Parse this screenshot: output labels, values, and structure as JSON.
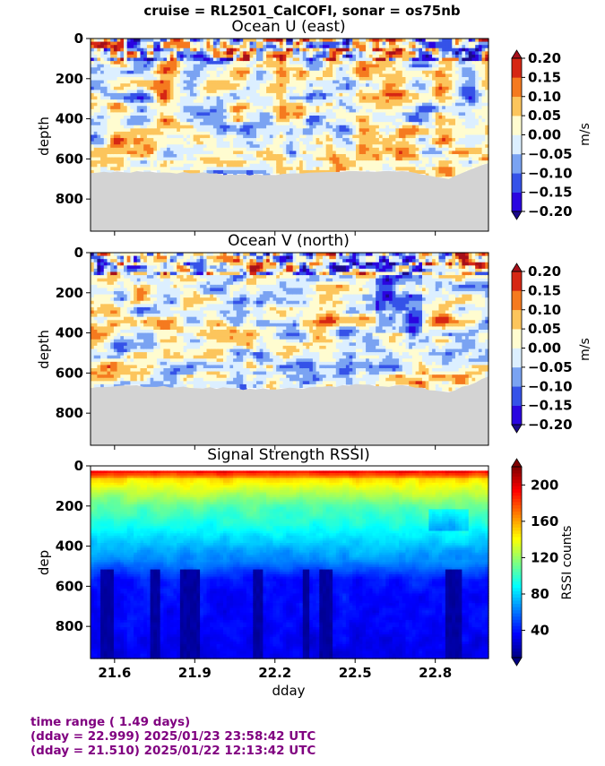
{
  "suptitle": "cruise = RL2501_CalCOFI,  sonar = os75nb",
  "footer": {
    "line1": "time range ( 1.49 days)",
    "line2": "(dday = 22.999) 2025/01/23 23:58:42 UTC",
    "line3": "(dday = 21.510) 2025/01/22 12:13:42 UTC"
  },
  "colors": {
    "no_data": "#d3d3d3",
    "diverging_levels": [
      "#2a05e0",
      "#3552e8",
      "#7aa3f2",
      "#dcefff",
      "#fffcd0",
      "#fcc55c",
      "#f57a1f",
      "#d62714"
    ],
    "diverging_over": "#a6101a",
    "diverging_under": "#1b0a8c",
    "title_purple": "#800080"
  },
  "chart_data": [
    {
      "type": "heatmap",
      "title": "Ocean U (east)",
      "xlabel": "",
      "ylabel": "depth",
      "x_range": [
        21.51,
        22.999
      ],
      "ylim": [
        960,
        0
      ],
      "yticks": [
        "0",
        "200",
        "400",
        "600",
        "800"
      ],
      "xticks": [
        "21.6",
        "21.9",
        "22.2",
        "22.5",
        "22.8"
      ],
      "colorbar": {
        "label": "m/s",
        "range": [
          -0.2,
          0.2
        ],
        "ticks": [
          "0.20",
          "0.15",
          "0.10",
          "0.05",
          "0.00",
          "−0.05",
          "−0.10",
          "−0.15",
          "−0.20"
        ],
        "extend": "both"
      },
      "bottom_depth_profile": {
        "dday": [
          21.51,
          21.7,
          21.9,
          22.1,
          22.3,
          22.5,
          22.7,
          22.85,
          22.999
        ],
        "depth": [
          670,
          665,
          670,
          680,
          675,
          660,
          665,
          700,
          620
        ]
      }
    },
    {
      "type": "heatmap",
      "title": "Ocean V (north)",
      "xlabel": "",
      "ylabel": "depth",
      "x_range": [
        21.51,
        22.999
      ],
      "ylim": [
        960,
        0
      ],
      "yticks": [
        "0",
        "200",
        "400",
        "600",
        "800"
      ],
      "xticks": [
        "21.6",
        "21.9",
        "22.2",
        "22.5",
        "22.8"
      ],
      "colorbar": {
        "label": "m/s",
        "range": [
          -0.2,
          0.2
        ],
        "ticks": [
          "0.20",
          "0.15",
          "0.10",
          "0.05",
          "0.00",
          "−0.05",
          "−0.10",
          "−0.15",
          "−0.20"
        ],
        "extend": "both"
      },
      "bottom_depth_profile": {
        "dday": [
          21.51,
          21.7,
          21.9,
          22.1,
          22.3,
          22.5,
          22.7,
          22.85,
          22.999
        ],
        "depth": [
          670,
          665,
          670,
          680,
          675,
          660,
          665,
          700,
          620
        ]
      }
    },
    {
      "type": "heatmap",
      "title": "Signal Strength RSSI)",
      "xlabel": "dday",
      "ylabel": "dep",
      "x_range": [
        21.51,
        22.999
      ],
      "ylim": [
        960,
        0
      ],
      "yticks": [
        "0",
        "200",
        "400",
        "600",
        "800"
      ],
      "xticks": [
        "21.6",
        "21.9",
        "22.2",
        "22.5",
        "22.8"
      ],
      "colorbar": {
        "label": "RSSI counts",
        "range": [
          10,
          220
        ],
        "ticks": [
          "200",
          "160",
          "120",
          "80",
          "40"
        ],
        "tick_values": [
          200,
          160,
          120,
          80,
          40
        ],
        "extend": "both",
        "colormap": "jet"
      },
      "low_signal_dday_bands": [
        [
          21.55,
          21.6
        ],
        [
          21.73,
          21.77
        ],
        [
          21.85,
          21.92
        ],
        [
          22.12,
          22.15
        ],
        [
          22.31,
          22.33
        ],
        [
          22.37,
          22.42
        ],
        [
          22.84,
          22.9
        ]
      ]
    }
  ]
}
